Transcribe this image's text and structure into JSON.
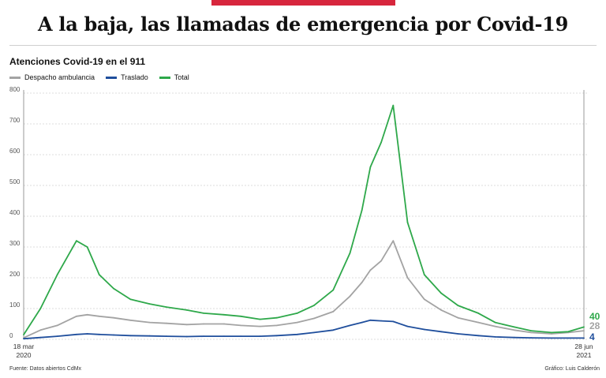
{
  "header": {
    "title": "A la baja, las llamadas de emergencia por Covid-19",
    "subtitle": "Atenciones Covid-19 en el 911"
  },
  "footer": {
    "source": "Fuente: Datos abiertos CdMx",
    "credit": "Gráfico: Luis Calderón"
  },
  "chart_data": {
    "type": "line",
    "title": "Atenciones Covid-19 en el 911",
    "xlabel": "",
    "ylabel": "",
    "ylim": [
      0,
      800
    ],
    "yticks": [
      0,
      100,
      200,
      300,
      400,
      500,
      600,
      700,
      800
    ],
    "x_start_label": [
      "18 mar",
      "2020"
    ],
    "x_end_label": [
      "28 jun",
      "2021"
    ],
    "grid": "horizontal dashed",
    "x": [
      "2020-03-18",
      "2020-04-01",
      "2020-04-15",
      "2020-05-01",
      "2020-05-10",
      "2020-05-20",
      "2020-06-01",
      "2020-06-15",
      "2020-07-01",
      "2020-07-15",
      "2020-08-01",
      "2020-08-15",
      "2020-09-01",
      "2020-09-15",
      "2020-10-01",
      "2020-10-15",
      "2020-11-01",
      "2020-11-15",
      "2020-12-01",
      "2020-12-15",
      "2020-12-25",
      "2021-01-01",
      "2021-01-10",
      "2021-01-20",
      "2021-02-01",
      "2021-02-15",
      "2021-03-01",
      "2021-03-15",
      "2021-04-01",
      "2021-04-15",
      "2021-05-01",
      "2021-05-15",
      "2021-06-01",
      "2021-06-15",
      "2021-06-28"
    ],
    "series": [
      {
        "name": "Despacho ambulancia",
        "color": "#a3a3a3",
        "values": [
          5,
          30,
          45,
          75,
          80,
          75,
          70,
          62,
          55,
          52,
          48,
          50,
          50,
          45,
          42,
          45,
          55,
          68,
          90,
          140,
          185,
          225,
          255,
          320,
          200,
          130,
          95,
          70,
          55,
          42,
          30,
          22,
          18,
          22,
          28
        ]
      },
      {
        "name": "Traslado",
        "color": "#1f4e9c",
        "values": [
          2,
          6,
          10,
          16,
          18,
          16,
          14,
          12,
          11,
          10,
          9,
          10,
          10,
          10,
          10,
          12,
          16,
          22,
          30,
          45,
          55,
          62,
          60,
          58,
          42,
          32,
          25,
          18,
          12,
          8,
          6,
          5,
          4,
          4,
          4
        ]
      },
      {
        "name": "Total",
        "color": "#2ea84a",
        "values": [
          15,
          100,
          210,
          320,
          300,
          210,
          165,
          130,
          115,
          105,
          95,
          85,
          80,
          75,
          65,
          70,
          85,
          110,
          160,
          280,
          420,
          560,
          640,
          760,
          380,
          210,
          150,
          110,
          85,
          55,
          40,
          28,
          22,
          25,
          40
        ]
      }
    ],
    "end_labels": [
      "40",
      "28",
      "4"
    ]
  }
}
